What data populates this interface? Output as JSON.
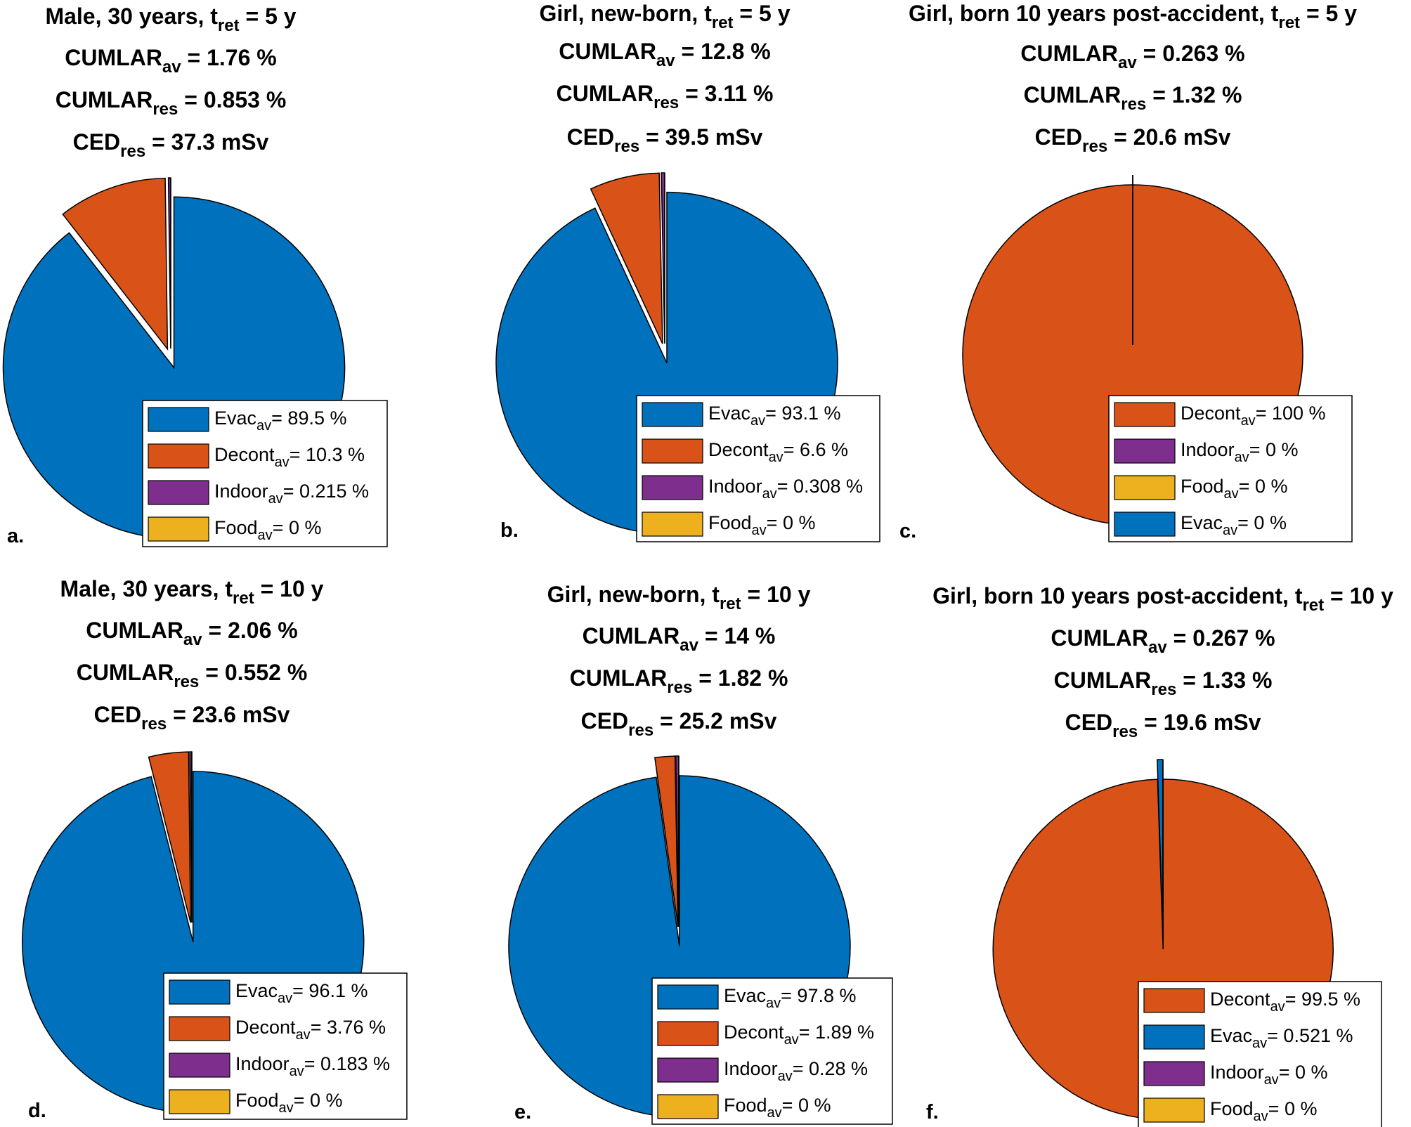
{
  "colors": {
    "Evac": "#0072BD",
    "Decont": "#D95319",
    "Indoor": "#7E2F8E",
    "Food": "#EDB120"
  },
  "chart_data": [
    {
      "type": "pie",
      "panel_label": "a.",
      "title_lines": [
        {
          "pre": "Male, 30 years, t",
          "sub": "ret",
          "post": " = 5 y"
        },
        {
          "pre": "CUMLAR",
          "sub": "av",
          "post": " = 1.76 %"
        },
        {
          "pre": "CUMLAR",
          "sub": "res",
          "post": " = 0.853 %"
        },
        {
          "pre": "CED",
          "sub": "res",
          "post": " = 37.3 mSv"
        }
      ],
      "slices": [
        {
          "name": "Evac",
          "value": 89.5
        },
        {
          "name": "Decont",
          "value": 10.3
        },
        {
          "name": "Indoor",
          "value": 0.215
        },
        {
          "name": "Food",
          "value": 0
        }
      ],
      "legend": [
        {
          "name": "Evac",
          "label": "Evac",
          "sub": "av",
          "value": "= 89.5 %"
        },
        {
          "name": "Decont",
          "label": "Decont",
          "sub": "av",
          "value": "= 10.3 %"
        },
        {
          "name": "Indoor",
          "label": "Indoor",
          "sub": "av",
          "value": "= 0.215 %"
        },
        {
          "name": "Food",
          "label": "Food",
          "sub": "av",
          "value": "= 0 %"
        }
      ]
    },
    {
      "type": "pie",
      "panel_label": "b.",
      "title_lines": [
        {
          "pre": "Girl, new-born, t",
          "sub": "ret",
          "post": " = 5 y"
        },
        {
          "pre": "CUMLAR",
          "sub": "av",
          "post": " = 12.8 %"
        },
        {
          "pre": "CUMLAR",
          "sub": "res",
          "post": " = 3.11 %"
        },
        {
          "pre": "CED",
          "sub": "res",
          "post": " = 39.5 mSv"
        }
      ],
      "slices": [
        {
          "name": "Evac",
          "value": 93.1
        },
        {
          "name": "Decont",
          "value": 6.6
        },
        {
          "name": "Indoor",
          "value": 0.308
        },
        {
          "name": "Food",
          "value": 0
        }
      ],
      "legend": [
        {
          "name": "Evac",
          "label": "Evac",
          "sub": "av",
          "value": "= 93.1 %"
        },
        {
          "name": "Decont",
          "label": "Decont",
          "sub": "av",
          "value": "= 6.6 %"
        },
        {
          "name": "Indoor",
          "label": "Indoor",
          "sub": "av",
          "value": "= 0.308 %"
        },
        {
          "name": "Food",
          "label": "Food",
          "sub": "av",
          "value": "= 0 %"
        }
      ]
    },
    {
      "type": "pie",
      "panel_label": "c.",
      "title_lines": [
        {
          "pre": "Girl, born 10 years post-accident, t",
          "sub": "ret",
          "post": " = 5 y"
        },
        {
          "pre": "CUMLAR",
          "sub": "av",
          "post": " = 0.263 %"
        },
        {
          "pre": "CUMLAR",
          "sub": "res",
          "post": " = 1.32 %"
        },
        {
          "pre": "CED",
          "sub": "res",
          "post": " = 20.6 mSv"
        }
      ],
      "slices": [
        {
          "name": "Decont",
          "value": 100
        },
        {
          "name": "Indoor",
          "value": 0
        },
        {
          "name": "Food",
          "value": 0
        },
        {
          "name": "Evac",
          "value": 0
        }
      ],
      "legend": [
        {
          "name": "Decont",
          "label": "Decont",
          "sub": "av",
          "value": "= 100 %"
        },
        {
          "name": "Indoor",
          "label": "Indoor",
          "sub": "av",
          "value": "= 0 %"
        },
        {
          "name": "Food",
          "label": "Food",
          "sub": "av",
          "value": "= 0 %"
        },
        {
          "name": "Evac",
          "label": "Evac",
          "sub": "av",
          "value": "= 0 %"
        }
      ]
    },
    {
      "type": "pie",
      "panel_label": "d.",
      "title_lines": [
        {
          "pre": "Male, 30 years, t",
          "sub": "ret",
          "post": " = 10 y"
        },
        {
          "pre": "CUMLAR",
          "sub": "av",
          "post": " = 2.06 %"
        },
        {
          "pre": "CUMLAR",
          "sub": "res",
          "post": " = 0.552 %"
        },
        {
          "pre": "CED",
          "sub": "res",
          "post": " = 23.6 mSv"
        }
      ],
      "slices": [
        {
          "name": "Evac",
          "value": 96.1
        },
        {
          "name": "Decont",
          "value": 3.76
        },
        {
          "name": "Indoor",
          "value": 0.183
        },
        {
          "name": "Food",
          "value": 0
        }
      ],
      "legend": [
        {
          "name": "Evac",
          "label": "Evac",
          "sub": "av",
          "value": "= 96.1 %"
        },
        {
          "name": "Decont",
          "label": "Decont",
          "sub": "av",
          "value": "= 3.76 %"
        },
        {
          "name": "Indoor",
          "label": "Indoor",
          "sub": "av",
          "value": "= 0.183 %"
        },
        {
          "name": "Food",
          "label": "Food",
          "sub": "av",
          "value": "= 0 %"
        }
      ]
    },
    {
      "type": "pie",
      "panel_label": "e.",
      "title_lines": [
        {
          "pre": "Girl, new-born, t",
          "sub": "ret",
          "post": " = 10 y"
        },
        {
          "pre": "CUMLAR",
          "sub": "av",
          "post": " = 14 %"
        },
        {
          "pre": "CUMLAR",
          "sub": "res",
          "post": " = 1.82 %"
        },
        {
          "pre": "CED",
          "sub": "res",
          "post": " = 25.2 mSv"
        }
      ],
      "slices": [
        {
          "name": "Evac",
          "value": 97.8
        },
        {
          "name": "Decont",
          "value": 1.89
        },
        {
          "name": "Indoor",
          "value": 0.28
        },
        {
          "name": "Food",
          "value": 0
        }
      ],
      "legend": [
        {
          "name": "Evac",
          "label": "Evac",
          "sub": "av",
          "value": "= 97.8 %"
        },
        {
          "name": "Decont",
          "label": "Decont",
          "sub": "av",
          "value": "= 1.89 %"
        },
        {
          "name": "Indoor",
          "label": "Indoor",
          "sub": "av",
          "value": "= 0.28 %"
        },
        {
          "name": "Food",
          "label": "Food",
          "sub": "av",
          "value": "= 0 %"
        }
      ]
    },
    {
      "type": "pie",
      "panel_label": "f.",
      "title_lines": [
        {
          "pre": "Girl, born 10 years post-accident, t",
          "sub": "ret",
          "post": " = 10 y"
        },
        {
          "pre": "CUMLAR",
          "sub": "av",
          "post": " = 0.267 %"
        },
        {
          "pre": "CUMLAR",
          "sub": "res",
          "post": " = 1.33 %"
        },
        {
          "pre": "CED",
          "sub": "res",
          "post": " = 19.6 mSv"
        }
      ],
      "slices": [
        {
          "name": "Decont",
          "value": 99.5
        },
        {
          "name": "Evac",
          "value": 0.521
        },
        {
          "name": "Indoor",
          "value": 0
        },
        {
          "name": "Food",
          "value": 0
        }
      ],
      "legend": [
        {
          "name": "Decont",
          "label": "Decont",
          "sub": "av",
          "value": "= 99.5 %"
        },
        {
          "name": "Evac",
          "label": "Evac",
          "sub": "av",
          "value": "= 0.521 %"
        },
        {
          "name": "Indoor",
          "label": "Indoor",
          "sub": "av",
          "value": "= 0 %"
        },
        {
          "name": "Food",
          "label": "Food",
          "sub": "av",
          "value": "= 0 %"
        }
      ]
    }
  ]
}
